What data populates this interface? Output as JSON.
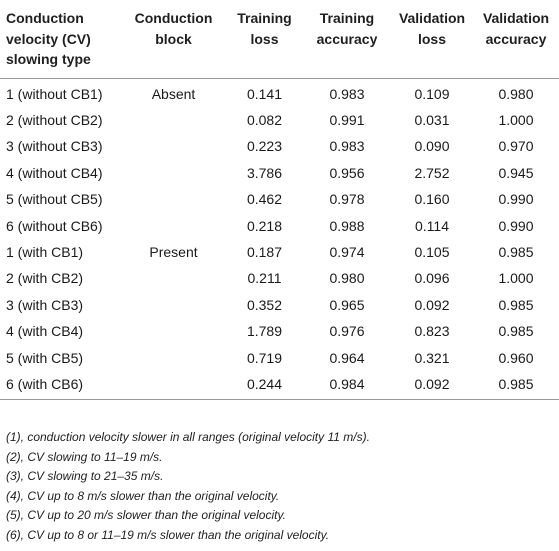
{
  "table": {
    "headers": [
      [
        "Conduction",
        "velocity (CV)",
        "slowing type"
      ],
      [
        "Conduction",
        "block"
      ],
      [
        "Training",
        "loss"
      ],
      [
        "Training",
        "accuracy"
      ],
      [
        "Validation",
        "loss"
      ],
      [
        "Validation",
        "accuracy"
      ]
    ],
    "rows": [
      [
        "1 (without CB1)",
        "Absent",
        "0.141",
        "0.983",
        "0.109",
        "0.980"
      ],
      [
        "2 (without CB2)",
        "",
        "0.082",
        "0.991",
        "0.031",
        "1.000"
      ],
      [
        "3 (without CB3)",
        "",
        "0.223",
        "0.983",
        "0.090",
        "0.970"
      ],
      [
        "4 (without CB4)",
        "",
        "3.786",
        "0.956",
        "2.752",
        "0.945"
      ],
      [
        "5 (without CB5)",
        "",
        "0.462",
        "0.978",
        "0.160",
        "0.990"
      ],
      [
        "6 (without CB6)",
        "",
        "0.218",
        "0.988",
        "0.114",
        "0.990"
      ],
      [
        "1 (with CB1)",
        "Present",
        "0.187",
        "0.974",
        "0.105",
        "0.985"
      ],
      [
        "2 (with CB2)",
        "",
        "0.211",
        "0.980",
        "0.096",
        "1.000"
      ],
      [
        "3 (with CB3)",
        "",
        "0.352",
        "0.965",
        "0.092",
        "0.985"
      ],
      [
        "4 (with CB4)",
        "",
        "1.789",
        "0.976",
        "0.823",
        "0.985"
      ],
      [
        "5 (with CB5)",
        "",
        "0.719",
        "0.964",
        "0.321",
        "0.960"
      ],
      [
        "6 (with CB6)",
        "",
        "0.244",
        "0.984",
        "0.092",
        "0.985"
      ]
    ]
  },
  "footnotes": [
    "(1), conduction velocity slower in all ranges (original velocity 11 m/s).",
    "(2), CV slowing to 11–19 m/s.",
    "(3), CV slowing to 21–35 m/s.",
    "(4), CV up to 8 m/s slower than the original velocity.",
    "(5), CV up to 20 m/s slower than the original velocity.",
    "(6), CV up to 8 or 11–19 m/s slower than the original velocity."
  ]
}
